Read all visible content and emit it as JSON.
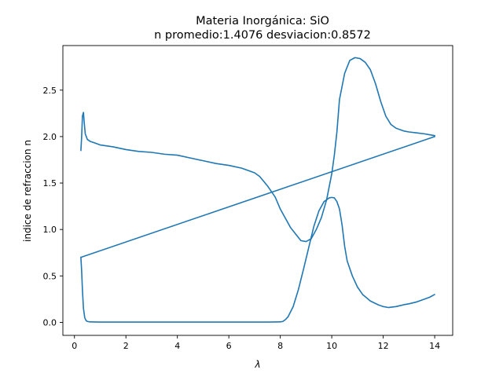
{
  "chart_data": {
    "type": "line",
    "title": "Materia Inorgánica: SiO",
    "subtitle": "n promedio:1.4076 desviacion:0.8572",
    "xlabel": "λ",
    "ylabel": "indice de refraccion n",
    "xlim": [
      -0.45,
      14.7
    ],
    "ylim": [
      -0.14,
      2.98
    ],
    "xticks": [
      0,
      2,
      4,
      6,
      8,
      10,
      12,
      14
    ],
    "yticks": [
      0.0,
      0.5,
      1.0,
      1.5,
      2.0,
      2.5
    ],
    "grid": false,
    "color": "#1f77b4",
    "series": [
      {
        "x": [
          0.25,
          0.28,
          0.31,
          0.35,
          0.38,
          0.42,
          0.5,
          0.6,
          0.8,
          1.0,
          1.5,
          2.0,
          2.5,
          3.0,
          3.5,
          4.0,
          4.5,
          5.0,
          5.5,
          6.0,
          6.5,
          7.0,
          7.2,
          7.5,
          7.8,
          8.0,
          8.2,
          8.4,
          8.6,
          8.8,
          9.0,
          9.2,
          9.4,
          9.6,
          9.8,
          10.0,
          10.1,
          10.2,
          10.3,
          10.5,
          10.7,
          10.9,
          11.1,
          11.3,
          11.5,
          11.7,
          11.9,
          12.1,
          12.3,
          12.5,
          12.8,
          13.0,
          13.3,
          13.6,
          13.8,
          14.0,
          14.0,
          0.25
        ],
        "y": [
          1.85,
          2.0,
          2.22,
          2.26,
          2.15,
          2.03,
          1.97,
          1.95,
          1.93,
          1.91,
          1.89,
          1.86,
          1.84,
          1.83,
          1.81,
          1.8,
          1.77,
          1.74,
          1.71,
          1.69,
          1.66,
          1.61,
          1.57,
          1.47,
          1.35,
          1.22,
          1.12,
          1.02,
          0.95,
          0.88,
          0.87,
          0.9,
          1.0,
          1.13,
          1.32,
          1.6,
          1.8,
          2.05,
          2.4,
          2.68,
          2.82,
          2.85,
          2.84,
          2.8,
          2.72,
          2.57,
          2.38,
          2.22,
          2.13,
          2.09,
          2.06,
          2.05,
          2.04,
          2.03,
          2.02,
          2.01,
          2.0,
          0.7
        ]
      },
      {
        "x": [
          0.25,
          0.28,
          0.31,
          0.35,
          0.4,
          0.45,
          0.5,
          0.6,
          1.0,
          2.0,
          3.0,
          4.0,
          5.0,
          6.0,
          7.0,
          7.5,
          8.0,
          8.1,
          8.2,
          8.3,
          8.5,
          8.7,
          8.9,
          9.1,
          9.3,
          9.5,
          9.7,
          9.9,
          10.0,
          10.1,
          10.2,
          10.3,
          10.4,
          10.5,
          10.6,
          10.8,
          11.0,
          11.2,
          11.5,
          11.8,
          12.0,
          12.2,
          12.5,
          12.8,
          13.0,
          13.3,
          13.6,
          13.8,
          14.0
        ],
        "y": [
          0.7,
          0.55,
          0.35,
          0.15,
          0.05,
          0.02,
          0.01,
          0.005,
          0.003,
          0.003,
          0.003,
          0.003,
          0.003,
          0.003,
          0.003,
          0.003,
          0.005,
          0.01,
          0.03,
          0.06,
          0.17,
          0.35,
          0.57,
          0.8,
          1.03,
          1.2,
          1.3,
          1.34,
          1.345,
          1.34,
          1.3,
          1.22,
          1.05,
          0.82,
          0.66,
          0.5,
          0.38,
          0.3,
          0.23,
          0.19,
          0.17,
          0.16,
          0.17,
          0.19,
          0.2,
          0.22,
          0.25,
          0.27,
          0.3
        ]
      }
    ]
  }
}
